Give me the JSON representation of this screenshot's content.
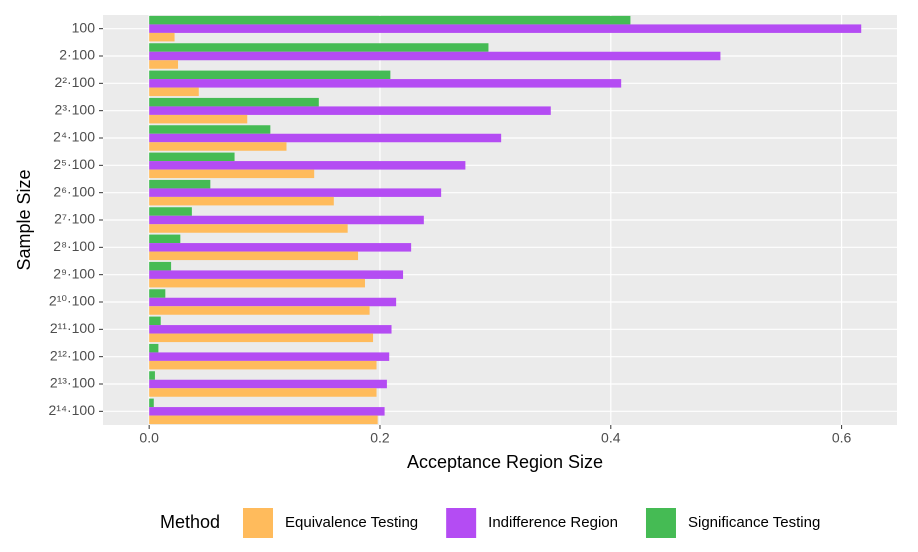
{
  "chart_data": {
    "type": "hbar",
    "x_label": "Acceptance Region Size",
    "y_label": "Sample Size",
    "legend_title": "Method",
    "legend": "bottom",
    "grid": true,
    "categories": [
      "100",
      "2·100",
      "2²·100",
      "2³·100",
      "2⁴·100",
      "2⁵·100",
      "2⁶·100",
      "2⁷·100",
      "2⁸·100",
      "2⁹·100",
      "2¹⁰·100",
      "2¹¹·100",
      "2¹²·100",
      "2¹³·100",
      "2¹⁴·100"
    ],
    "series": [
      {
        "name": "Equivalence Testing",
        "color": "#ffbb5c",
        "values": [
          0.022,
          0.025,
          0.043,
          0.085,
          0.119,
          0.143,
          0.16,
          0.172,
          0.181,
          0.187,
          0.191,
          0.194,
          0.197,
          0.197,
          0.198
        ]
      },
      {
        "name": "Indifference Region",
        "color": "#b44cf3",
        "values": [
          0.617,
          0.495,
          0.409,
          0.348,
          0.305,
          0.274,
          0.253,
          0.238,
          0.227,
          0.22,
          0.214,
          0.21,
          0.208,
          0.206,
          0.204
        ]
      },
      {
        "name": "Significance Testing",
        "color": "#45bb54",
        "values": [
          0.417,
          0.294,
          0.209,
          0.147,
          0.105,
          0.074,
          0.053,
          0.037,
          0.027,
          0.019,
          0.014,
          0.01,
          0.008,
          0.005,
          0.004
        ]
      }
    ],
    "xlim": [
      -0.04,
      0.648
    ],
    "xticks": [
      {
        "value": 0,
        "label": "0.0"
      },
      0.2,
      0.4,
      0.6
    ]
  }
}
